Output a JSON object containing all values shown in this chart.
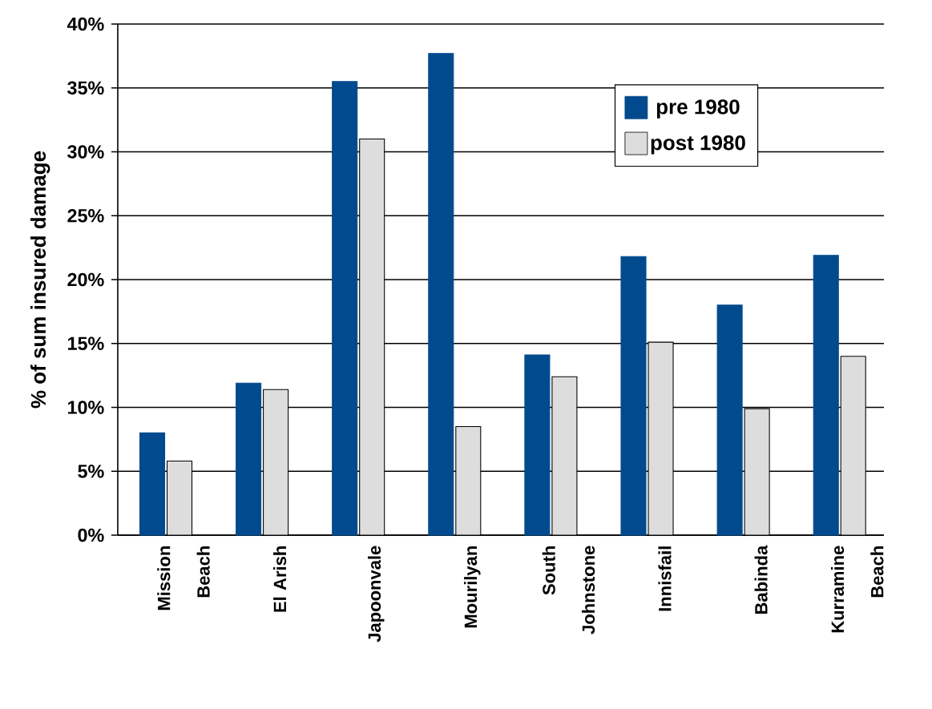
{
  "chart_data": {
    "type": "bar",
    "ylabel": "% of sum insured damage",
    "categories": [
      "Mission Beach",
      "El Arish",
      "Japoonvale",
      "Mourilyan",
      "South Johnstone",
      "Innisfail",
      "Babinda",
      "Kurramine Beach"
    ],
    "series": [
      {
        "name": "pre 1980",
        "color": "#004a8d",
        "values": [
          8.0,
          11.9,
          35.5,
          37.7,
          14.1,
          21.8,
          18.0,
          21.9
        ]
      },
      {
        "name": "post 1980",
        "color": "#dddddd",
        "values": [
          5.8,
          11.4,
          31.0,
          8.5,
          12.4,
          15.1,
          9.9,
          14.0
        ]
      }
    ],
    "ylim": [
      0,
      40
    ],
    "yticks": [
      {
        "value": 0,
        "label": "0%"
      },
      {
        "value": 5,
        "label": "5%"
      },
      {
        "value": 10,
        "label": "10%"
      },
      {
        "value": 15,
        "label": "15%"
      },
      {
        "value": 20,
        "label": "20%"
      },
      {
        "value": 25,
        "label": "25%"
      },
      {
        "value": 30,
        "label": "30%"
      },
      {
        "value": 35,
        "label": "35%"
      },
      {
        "value": 40,
        "label": "40%"
      }
    ],
    "grid": "y",
    "legend": "top right"
  }
}
